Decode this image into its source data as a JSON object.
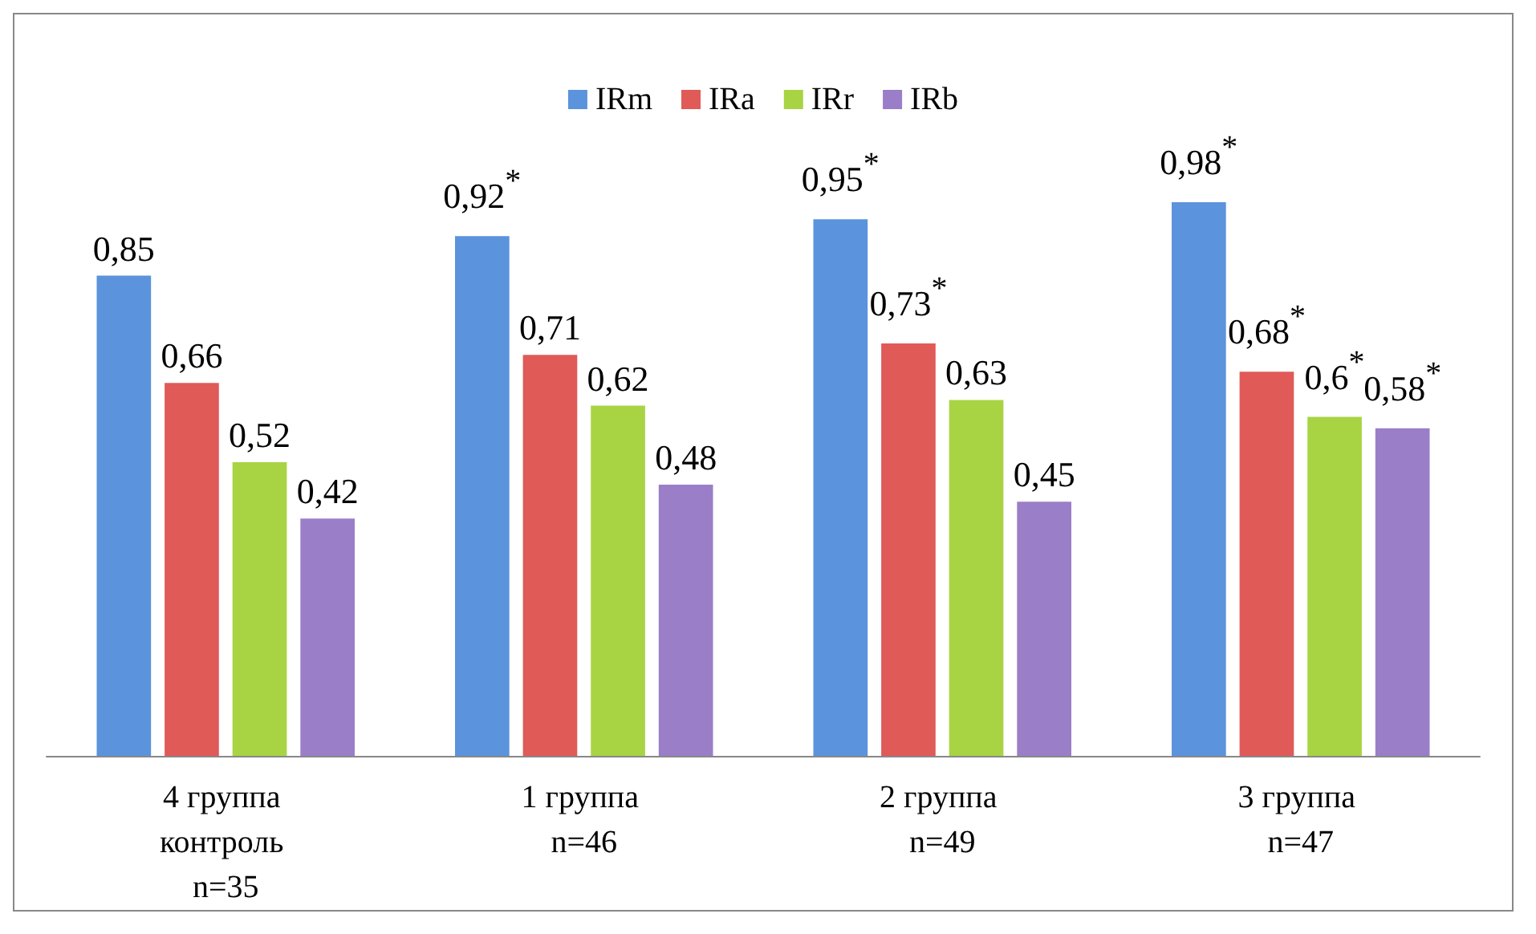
{
  "chart_data": {
    "type": "bar",
    "categories": [
      "4 группа контроль n=35",
      "1 группа n=46",
      "2 группа n=49",
      "3 группа n=47"
    ],
    "series": [
      {
        "name": "IRm",
        "color": "#5b93dc",
        "values": [
          0.85,
          0.92,
          0.95,
          0.98
        ],
        "value_labels": [
          "0,85",
          "0,92$^{*}$",
          "0,95$^{*}$",
          "0,98$^{*}$"
        ]
      },
      {
        "name": "IRa",
        "color": "#e05a58",
        "values": [
          0.66,
          0.71,
          0.73,
          0.68
        ],
        "value_labels": [
          "0,66",
          "0,71",
          "0,73$^{*}$",
          "0,68$^{*}$"
        ]
      },
      {
        "name": "IRr",
        "color": "#a8d444",
        "values": [
          0.52,
          0.62,
          0.63,
          0.6
        ],
        "value_labels": [
          "0,52",
          "0,62",
          "0,63",
          "0,6$^{*}$"
        ]
      },
      {
        "name": "IRb",
        "color": "#9a7ec8",
        "values": [
          0.42,
          0.48,
          0.45,
          0.58
        ],
        "value_labels": [
          "0,42",
          "0,48",
          "0,45",
          "0,58$^{*}$"
        ]
      }
    ],
    "legend": "top",
    "grid": false
  }
}
